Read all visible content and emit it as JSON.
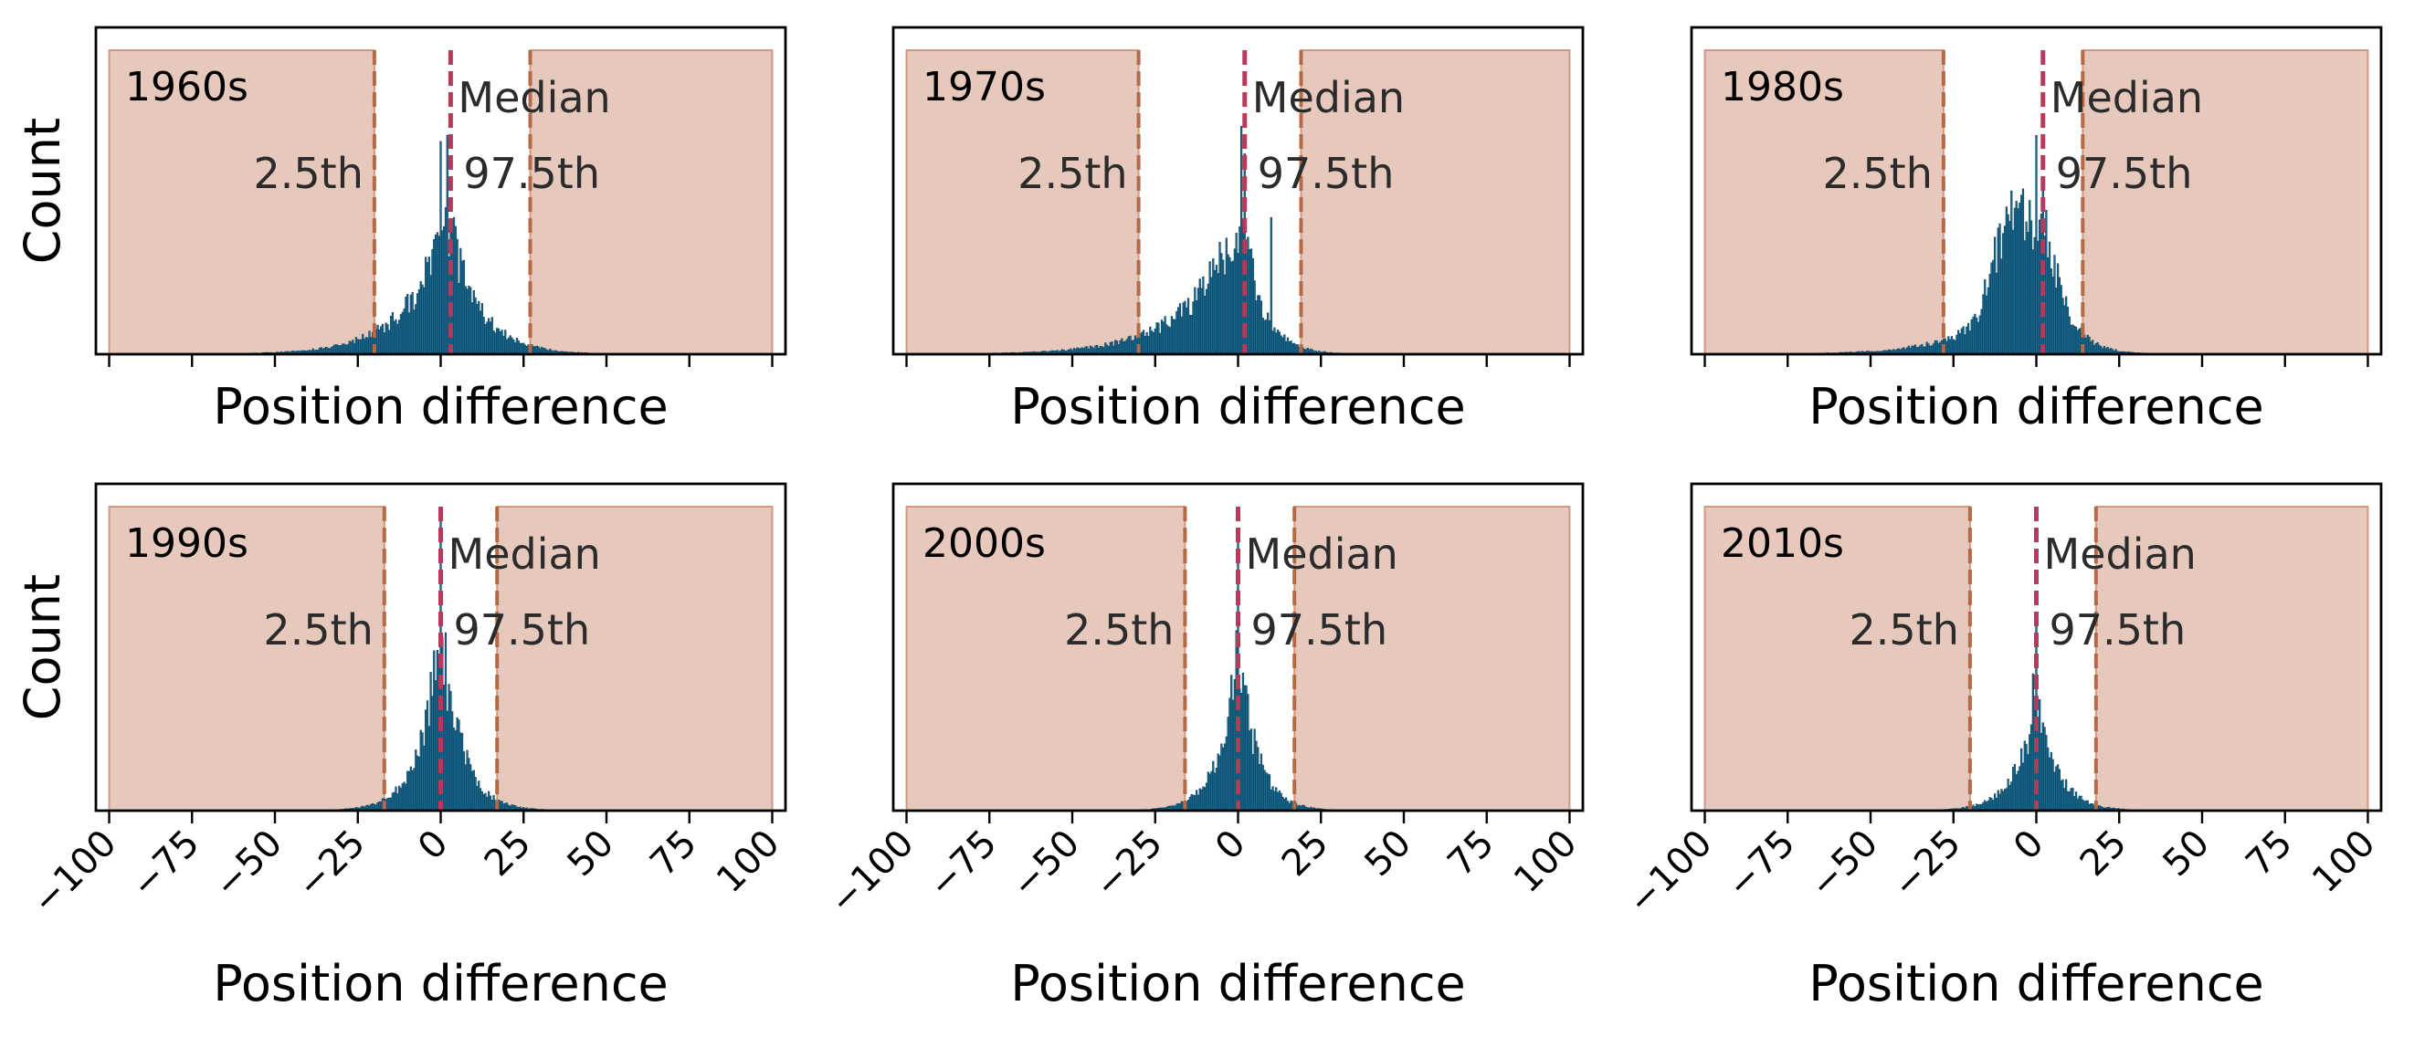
{
  "chart_data": [
    {
      "type": "bar",
      "decade": "1960s",
      "xlabel": "Position difference",
      "ylabel": "Count",
      "xlim": [
        -104,
        104
      ],
      "xticks": [
        -100,
        -75,
        -50,
        -25,
        0,
        25,
        50,
        75,
        100
      ],
      "xtick_labels": [
        "−100",
        "−75",
        "−50",
        "−25",
        "0",
        "25",
        "50",
        "75",
        "100"
      ],
      "show_xtick_labels": false,
      "show_ylabel": true,
      "median": 3,
      "p2_5": -20,
      "p97_5": 27,
      "annotations": {
        "median": "Median",
        "p2_5": "2.5th",
        "p97_5": "97.5th"
      },
      "distribution": {
        "peak_x": 2,
        "peak_height": 0.72,
        "left_scale": 12,
        "right_scale": 9,
        "skew_left_bump": 0.0,
        "spikes": [
          [
            0,
            0.7
          ],
          [
            1,
            0.42
          ],
          [
            2,
            0.72
          ],
          [
            4,
            0.45
          ]
        ]
      }
    },
    {
      "type": "bar",
      "decade": "1970s",
      "xlabel": "Position difference",
      "ylabel": "Count",
      "xlim": [
        -104,
        104
      ],
      "xticks": [
        -100,
        -75,
        -50,
        -25,
        0,
        25,
        50,
        75,
        100
      ],
      "xtick_labels": [
        "−100",
        "−75",
        "−50",
        "−25",
        "0",
        "25",
        "50",
        "75",
        "100"
      ],
      "show_xtick_labels": false,
      "show_ylabel": false,
      "median": 2,
      "p2_5": -30,
      "p97_5": 19,
      "annotations": {
        "median": "Median",
        "p2_5": "2.5th",
        "p97_5": "97.5th"
      },
      "distribution": {
        "peak_x": 1,
        "peak_height": 0.75,
        "left_scale": 15,
        "right_scale": 6,
        "skew_left_bump": 0.0,
        "spikes": [
          [
            1,
            0.75
          ],
          [
            2,
            0.66
          ],
          [
            10,
            0.45
          ]
        ]
      }
    },
    {
      "type": "bar",
      "decade": "1980s",
      "xlabel": "Position difference",
      "ylabel": "Count",
      "xlim": [
        -104,
        104
      ],
      "xticks": [
        -100,
        -75,
        -50,
        -25,
        0,
        25,
        50,
        75,
        100
      ],
      "xtick_labels": [
        "−100",
        "−75",
        "−50",
        "−25",
        "0",
        "25",
        "50",
        "75",
        "100"
      ],
      "show_xtick_labels": false,
      "show_ylabel": false,
      "median": 2,
      "p2_5": -28,
      "p97_5": 14,
      "annotations": {
        "median": "Median",
        "p2_5": "2.5th",
        "p97_5": "97.5th"
      },
      "distribution": {
        "peak_x": 3,
        "peak_height": 0.68,
        "left_scale": 14,
        "right_scale": 6,
        "skew_left_bump": 0.27,
        "spikes": [
          [
            0,
            0.72
          ],
          [
            2,
            0.55
          ]
        ]
      }
    },
    {
      "type": "bar",
      "decade": "1990s",
      "xlabel": "Position difference",
      "ylabel": "Count",
      "xlim": [
        -104,
        104
      ],
      "xticks": [
        -100,
        -75,
        -50,
        -25,
        0,
        25,
        50,
        75,
        100
      ],
      "xtick_labels": [
        "−100",
        "−75",
        "−50",
        "−25",
        "0",
        "25",
        "50",
        "75",
        "100"
      ],
      "show_xtick_labels": true,
      "show_ylabel": true,
      "median": 0,
      "p2_5": -17,
      "p97_5": 17,
      "annotations": {
        "median": "Median",
        "p2_5": "2.5th",
        "p97_5": "97.5th"
      },
      "distribution": {
        "peak_x": 0,
        "peak_height": 0.98,
        "left_scale": 6,
        "right_scale": 6,
        "skew_left_bump": 0.0,
        "spikes": [
          [
            0,
            0.98
          ]
        ]
      }
    },
    {
      "type": "bar",
      "decade": "2000s",
      "xlabel": "Position difference",
      "ylabel": "Count",
      "xlim": [
        -104,
        104
      ],
      "xticks": [
        -100,
        -75,
        -50,
        -25,
        0,
        25,
        50,
        75,
        100
      ],
      "xtick_labels": [
        "−100",
        "−75",
        "−50",
        "−25",
        "0",
        "25",
        "50",
        "75",
        "100"
      ],
      "show_xtick_labels": true,
      "show_ylabel": false,
      "median": 0,
      "p2_5": -16,
      "p97_5": 17,
      "annotations": {
        "median": "Median",
        "p2_5": "2.5th",
        "p97_5": "97.5th"
      },
      "distribution": {
        "peak_x": 0,
        "peak_height": 0.88,
        "left_scale": 5.5,
        "right_scale": 5.5,
        "skew_left_bump": 0.0,
        "spikes": [
          [
            0,
            0.92
          ]
        ]
      }
    },
    {
      "type": "bar",
      "decade": "2010s",
      "xlabel": "Position difference",
      "ylabel": "Count",
      "xlim": [
        -104,
        104
      ],
      "xticks": [
        -100,
        -75,
        -50,
        -25,
        0,
        25,
        50,
        75,
        100
      ],
      "xtick_labels": [
        "−100",
        "−75",
        "−50",
        "−25",
        "0",
        "25",
        "50",
        "75",
        "100"
      ],
      "show_xtick_labels": true,
      "show_ylabel": false,
      "median": 0,
      "p2_5": -20,
      "p97_5": 18,
      "annotations": {
        "median": "Median",
        "p2_5": "2.5th",
        "p97_5": "97.5th"
      },
      "distribution": {
        "peak_x": 0,
        "peak_height": 0.6,
        "left_scale": 6,
        "right_scale": 6,
        "skew_left_bump": 0.0,
        "spikes": [
          [
            0,
            0.62
          ],
          [
            -1,
            0.45
          ]
        ]
      }
    }
  ],
  "colors": {
    "bar_fill": "#1a6f9a",
    "shade": "#c8866b",
    "percentile_line": "#b56a45",
    "median_line": "#b83a5a"
  }
}
